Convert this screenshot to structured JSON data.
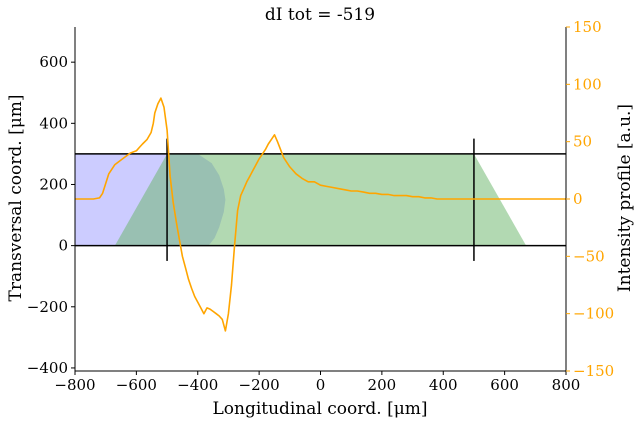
{
  "chart_data": {
    "type": "line",
    "title": "dI tot = -519",
    "xlabel": "Longitudinal coord. [μm]",
    "ylabel": "Transversal coord. [μm]",
    "y2label": "Intensity profile [a.u.]",
    "xlim": [
      -800,
      800
    ],
    "ylim": [
      -410,
      715
    ],
    "y2lim": [
      -150,
      150
    ],
    "xticks": [
      -800,
      -600,
      -400,
      -200,
      0,
      200,
      400,
      600,
      800
    ],
    "xtick_labels": [
      "−800",
      "−600",
      "−400",
      "−200",
      "0",
      "200",
      "400",
      "600",
      "800"
    ],
    "yticks": [
      -400,
      -200,
      0,
      200,
      400,
      600
    ],
    "ytick_labels": [
      "−400",
      "−200",
      "0",
      "200",
      "400",
      "600"
    ],
    "y2ticks": [
      -150,
      -100,
      -50,
      0,
      50,
      100,
      150
    ],
    "y2tick_labels": [
      "−150",
      "−100",
      "−50",
      "0",
      "50",
      "100",
      "150"
    ],
    "colors": {
      "intensity": "#ffa500",
      "blue_region": "#9999ff",
      "green_region": "#66b366",
      "boundary": "#000000",
      "right_axis": "#ffa500"
    },
    "channel": {
      "lines_y": [
        0,
        300
      ],
      "x_range": [
        -800,
        800
      ],
      "markers_x": [
        -500,
        500
      ],
      "marker_y_extent": [
        -50,
        350
      ]
    },
    "regions": [
      {
        "id": "blue",
        "polygon": [
          [
            -800,
            0
          ],
          [
            -800,
            300
          ],
          [
            -400,
            300
          ],
          [
            -355,
            270
          ],
          [
            -330,
            230
          ],
          [
            -315,
            185
          ],
          [
            -310,
            150
          ],
          [
            -315,
            110
          ],
          [
            -330,
            60
          ],
          [
            -345,
            25
          ],
          [
            -365,
            0
          ]
        ]
      },
      {
        "id": "green",
        "polygon": [
          [
            -670,
            0
          ],
          [
            -500,
            300
          ],
          [
            500,
            300
          ],
          [
            670,
            0
          ]
        ]
      }
    ],
    "series": [
      {
        "axis": "y2",
        "x": [
          -800,
          -740,
          -720,
          -710,
          -690,
          -670,
          -650,
          -630,
          -620,
          -600,
          -590,
          -580,
          -565,
          -552,
          -545,
          -540,
          -530,
          -520,
          -510,
          -500,
          -495,
          -490,
          -480,
          -470,
          -460,
          -450,
          -440,
          -430,
          -420,
          -410,
          -400,
          -390,
          -380,
          -370,
          -360,
          -350,
          -340,
          -330,
          -320,
          -315,
          -310,
          -300,
          -290,
          -280,
          -270,
          -260,
          -250,
          -240,
          -230,
          -220,
          -200,
          -190,
          -180,
          -170,
          -160,
          -150,
          -140,
          -130,
          -120,
          -100,
          -80,
          -60,
          -40,
          -20,
          0,
          20,
          40,
          60,
          80,
          100,
          120,
          140,
          160,
          180,
          200,
          220,
          240,
          260,
          280,
          300,
          320,
          340,
          360,
          380,
          400,
          450,
          500,
          600,
          700,
          800
        ],
        "y": [
          0,
          0,
          1,
          5,
          22,
          30,
          34,
          38,
          40,
          42,
          45,
          48,
          52,
          58,
          66,
          75,
          83,
          88,
          80,
          60,
          40,
          20,
          -3,
          -20,
          -35,
          -50,
          -60,
          -70,
          -78,
          -85,
          -90,
          -95,
          -100,
          -95,
          -96,
          -98,
          -100,
          -102,
          -105,
          -110,
          -115,
          -100,
          -75,
          -40,
          -10,
          3,
          9,
          15,
          20,
          25,
          35,
          39,
          43,
          48,
          52,
          56,
          50,
          43,
          36,
          28,
          22,
          18,
          15,
          15,
          12,
          11,
          10,
          9,
          8,
          7,
          7,
          6,
          5,
          5,
          4,
          4,
          3,
          3,
          3,
          2,
          2,
          1,
          1,
          0,
          0,
          0,
          0,
          0,
          0,
          0
        ]
      }
    ]
  }
}
